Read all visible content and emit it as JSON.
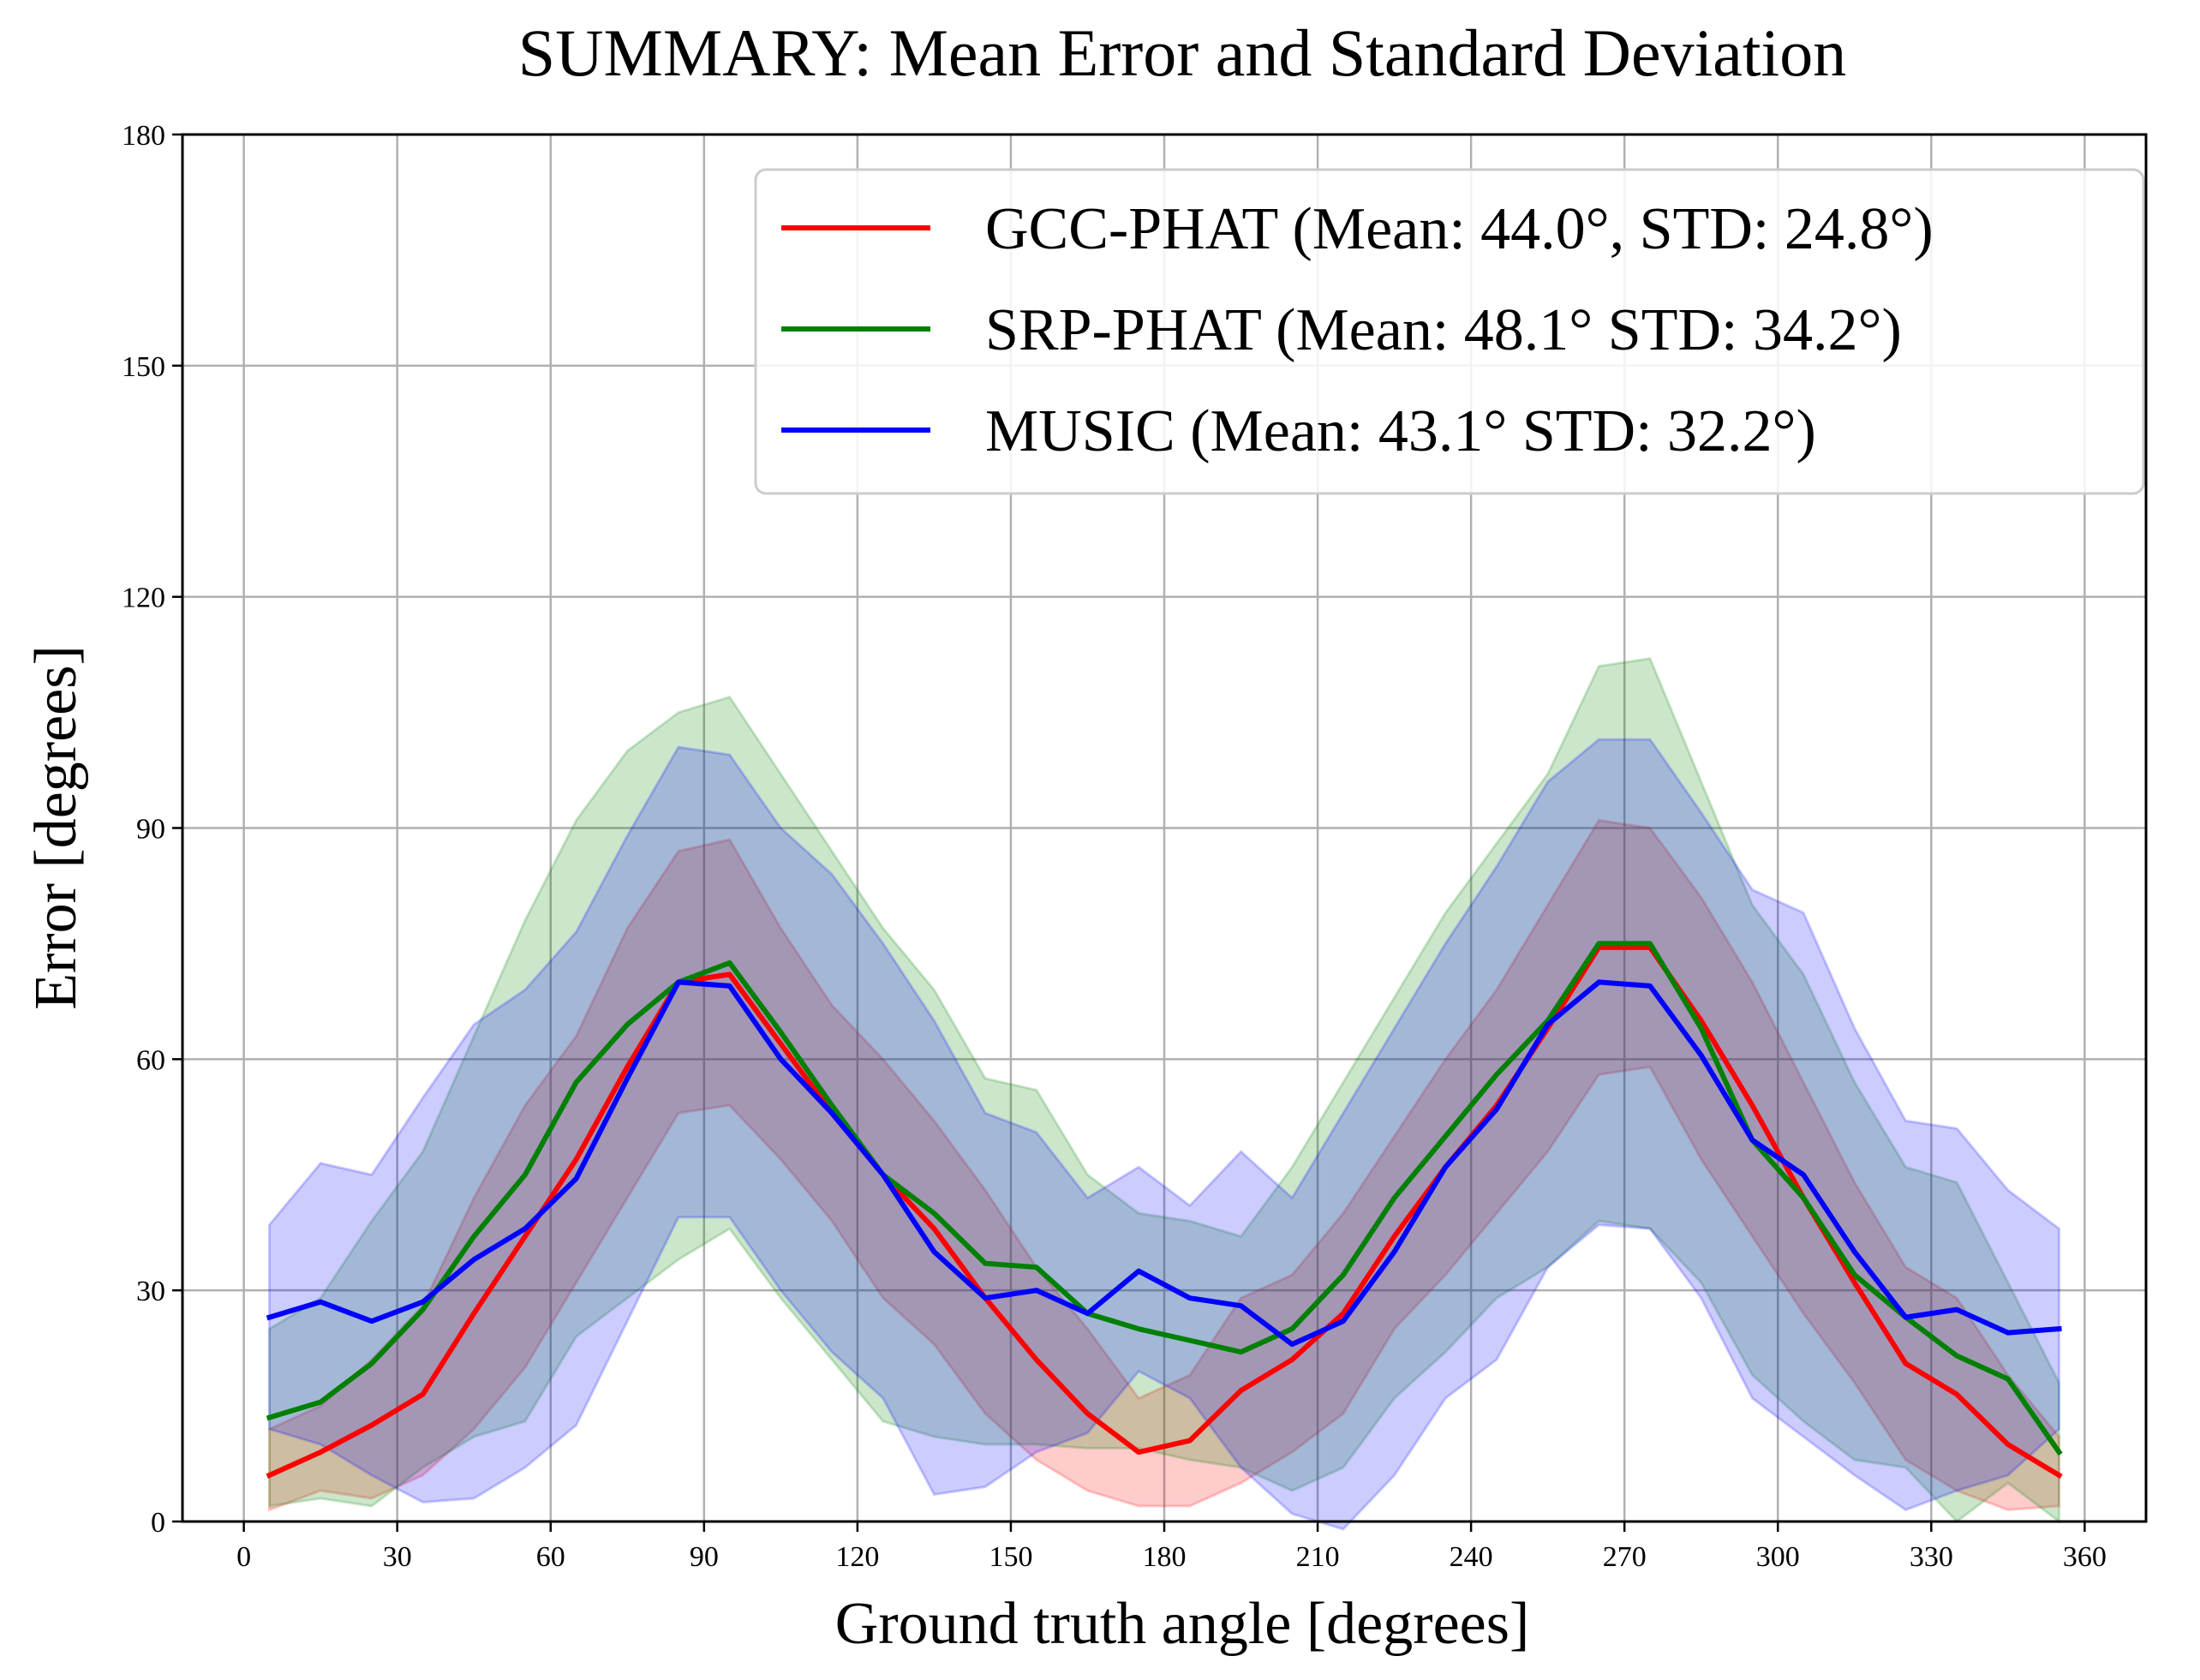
{
  "chart_data": {
    "type": "line",
    "title": "SUMMARY: Mean Error and Standard Deviation",
    "xlabel": "Ground truth angle [degrees]",
    "ylabel": "Error [degrees]",
    "xlim": [
      -12,
      372
    ],
    "ylim": [
      0,
      180
    ],
    "xticks": [
      0,
      30,
      60,
      90,
      120,
      150,
      180,
      210,
      240,
      270,
      300,
      330,
      360
    ],
    "yticks": [
      0,
      30,
      60,
      90,
      120,
      150,
      180
    ],
    "xtick_labels": [
      "0",
      "30",
      "60",
      "90",
      "120",
      "150",
      "180",
      "210",
      "240",
      "270",
      "300",
      "330",
      "360"
    ],
    "ytick_labels": [
      "0",
      "30",
      "60",
      "90",
      "120",
      "150",
      "180"
    ],
    "grid": true,
    "legend_position": "top-right",
    "x": [
      5,
      15,
      25,
      35,
      45,
      55,
      65,
      75,
      85,
      95,
      105,
      115,
      125,
      135,
      145,
      155,
      165,
      175,
      185,
      195,
      205,
      215,
      225,
      235,
      245,
      255,
      265,
      275,
      285,
      295,
      305,
      315,
      325,
      335,
      345,
      355
    ],
    "series": [
      {
        "name": "GCC-PHAT (Mean: 44.0°, STD: 24.8°)",
        "color": "#ff0000",
        "values": [
          6,
          9,
          12.5,
          16.5,
          27,
          37,
          47,
          59,
          70,
          71,
          62,
          53,
          45,
          38,
          29,
          21,
          14,
          9,
          10.5,
          17,
          21,
          27,
          37,
          46,
          54,
          64,
          74.5,
          74.5,
          65,
          54,
          42,
          31,
          20.5,
          16.5,
          10,
          6
        ],
        "std_low": [
          1.5,
          4,
          3,
          6,
          12,
          20,
          31,
          42,
          53,
          54,
          47,
          39,
          29,
          23,
          14,
          8,
          4,
          2,
          2,
          5,
          9,
          14,
          25,
          32,
          40,
          48,
          58,
          59,
          47,
          37,
          27,
          18,
          8,
          4,
          1.5,
          2
        ],
        "std_high": [
          12,
          15,
          21,
          28,
          42,
          54,
          63,
          77,
          87,
          88.5,
          77,
          67,
          60,
          52,
          43,
          33,
          25,
          16,
          19,
          29,
          32,
          40,
          50,
          60,
          69,
          80,
          91,
          90,
          81,
          70,
          57,
          44,
          33,
          29,
          19,
          11
        ]
      },
      {
        "name": "SRP-PHAT (Mean: 48.1° STD: 34.2°)",
        "color": "#008000",
        "values": [
          13.5,
          15.5,
          20.5,
          27.5,
          37,
          45,
          57,
          64.5,
          70,
          72.5,
          63.5,
          54,
          45,
          40,
          33.5,
          33,
          27,
          25,
          23.5,
          22,
          25,
          32,
          42,
          50,
          58,
          65,
          75,
          75,
          64,
          49.5,
          42,
          32,
          26.5,
          21.5,
          18.5,
          9
        ],
        "std_low": [
          2,
          3,
          2,
          7,
          11,
          13,
          24,
          29,
          34,
          38,
          29,
          21,
          13,
          11,
          10,
          10,
          9.5,
          9.5,
          8,
          7,
          4,
          7,
          16,
          22,
          29,
          33,
          39,
          38,
          31,
          19,
          13,
          8,
          7,
          0,
          5,
          0
        ],
        "std_high": [
          25,
          29,
          39,
          48,
          63,
          78,
          91,
          100,
          105,
          107,
          97,
          87,
          77,
          69,
          57.5,
          56,
          45,
          40,
          39,
          37,
          46,
          57,
          68,
          79,
          88,
          97,
          111,
          112,
          96,
          80,
          71,
          57,
          46,
          44,
          31,
          18
        ]
      },
      {
        "name": "MUSIC (Mean: 43.1° STD: 32.2°)",
        "color": "#0000ff",
        "values": [
          26.5,
          28.5,
          26,
          28.5,
          34,
          38,
          44.5,
          57.5,
          70,
          69.5,
          60,
          53,
          45,
          35,
          29,
          30,
          27,
          32.5,
          29,
          28,
          23,
          26,
          35,
          46,
          53.5,
          64.5,
          70,
          69.5,
          60.5,
          49.5,
          45,
          35,
          26.5,
          27.5,
          24.5,
          25
        ],
        "std_low": [
          12,
          10,
          6,
          2.5,
          3,
          7,
          12.5,
          26,
          39.5,
          39.5,
          30,
          22,
          16,
          3.5,
          4.5,
          9,
          11.5,
          19.5,
          16,
          7,
          1,
          -1,
          6,
          16,
          21,
          33,
          38.5,
          38,
          29,
          16,
          11,
          6,
          1.5,
          4,
          6,
          12
        ],
        "std_high": [
          38.5,
          46.5,
          45,
          55,
          64.5,
          69,
          76.5,
          89,
          100.5,
          99.5,
          90,
          84,
          75,
          65,
          53,
          50.5,
          42,
          46,
          41,
          48,
          42,
          53,
          64,
          75,
          85,
          96,
          101.5,
          101.5,
          92,
          82,
          79,
          64,
          52,
          51,
          43,
          38
        ]
      }
    ]
  }
}
